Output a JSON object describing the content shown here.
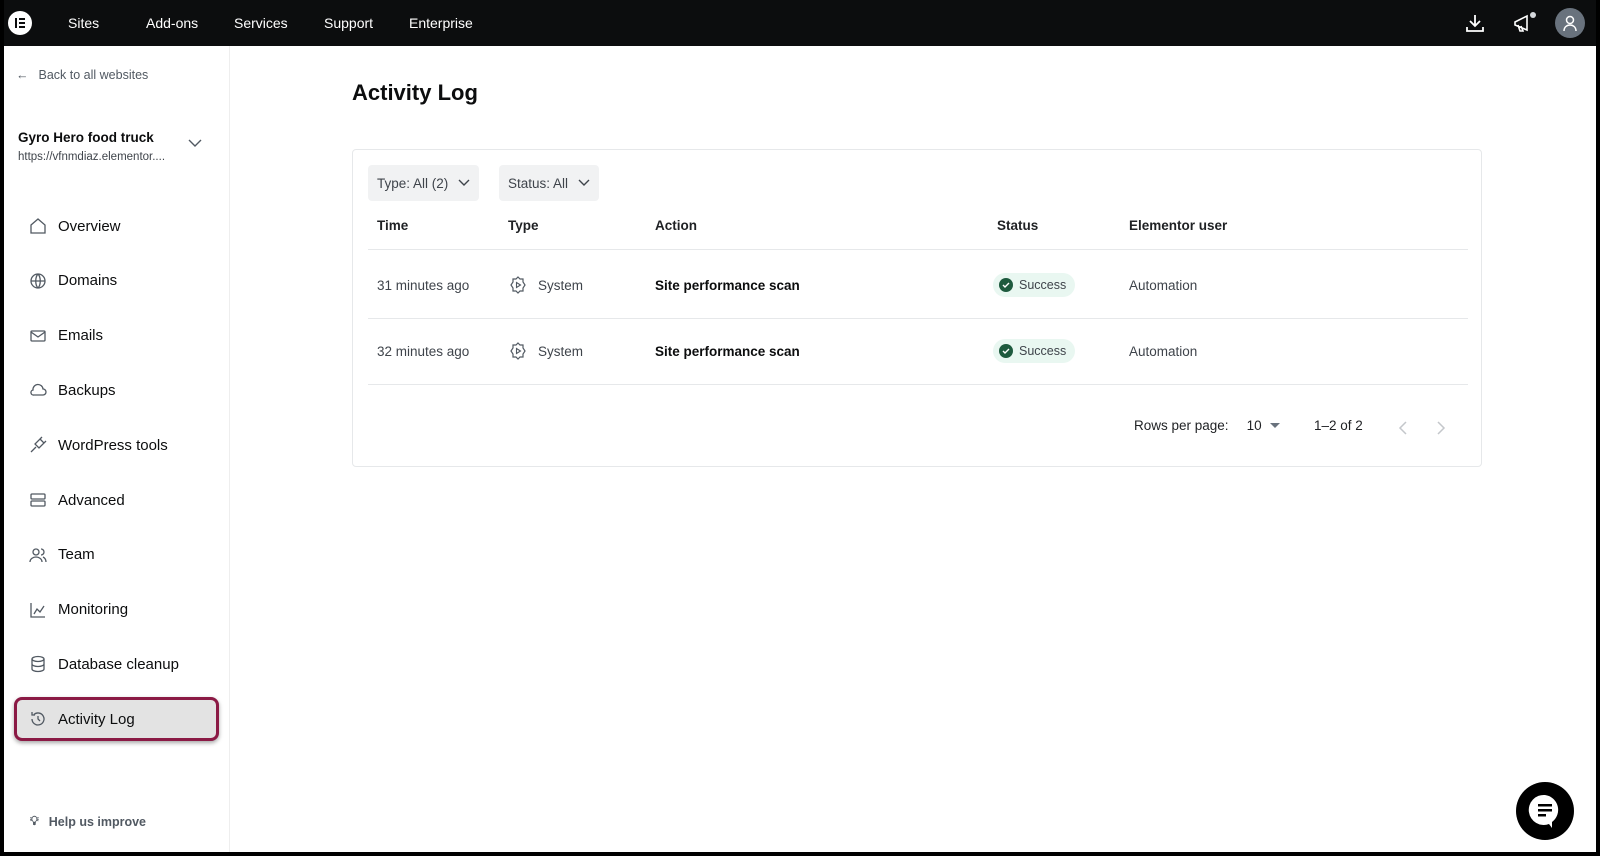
{
  "topbar": {
    "nav": [
      "Sites",
      "Add-ons",
      "Services",
      "Support",
      "Enterprise"
    ],
    "icons": [
      "elementor-logo",
      "download-icon",
      "megaphone-icon",
      "user-avatar-icon"
    ]
  },
  "sidebar": {
    "back_label": "Back to all websites",
    "site_name": "Gyro Hero food truck",
    "site_url": "https://vfnmdiaz.elementor....",
    "items": [
      {
        "label": "Overview",
        "icon": "home-icon"
      },
      {
        "label": "Domains",
        "icon": "globe-icon"
      },
      {
        "label": "Emails",
        "icon": "mail-icon"
      },
      {
        "label": "Backups",
        "icon": "cloud-icon"
      },
      {
        "label": "WordPress tools",
        "icon": "plug-icon"
      },
      {
        "label": "Advanced",
        "icon": "server-icon"
      },
      {
        "label": "Team",
        "icon": "users-icon"
      },
      {
        "label": "Monitoring",
        "icon": "chart-icon"
      },
      {
        "label": "Database cleanup",
        "icon": "database-icon"
      },
      {
        "label": "Activity Log",
        "icon": "history-icon",
        "active": true
      }
    ],
    "help_label": "Help us improve"
  },
  "main": {
    "title": "Activity Log",
    "filters": {
      "type": "Type: All (2)",
      "status": "Status: All"
    },
    "columns": [
      "Time",
      "Type",
      "Action",
      "Status",
      "Elementor user"
    ],
    "rows": [
      {
        "time": "31 minutes ago",
        "type": "System",
        "action": "Site performance scan",
        "status": "Success",
        "user": "Automation"
      },
      {
        "time": "32 minutes ago",
        "type": "System",
        "action": "Site performance scan",
        "status": "Success",
        "user": "Automation"
      }
    ],
    "pagination": {
      "rows_label": "Rows per page:",
      "rows_value": "10",
      "range": "1–2 of 2"
    }
  },
  "colors": {
    "topbar": "#0c0d0e",
    "success": "#1e5a3e",
    "success_bg": "#e9f7f1",
    "highlight": "#8b1a45"
  }
}
